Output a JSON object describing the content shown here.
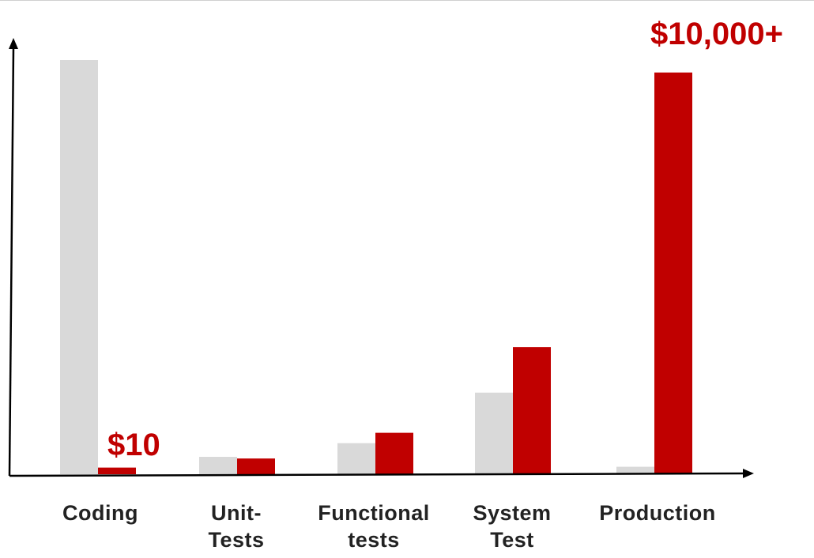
{
  "colors": {
    "effort": "#d9d9d9",
    "cost": "#c00000",
    "axis": "#000000",
    "text": "#222222"
  },
  "chart_data": {
    "type": "bar",
    "categories": [
      "Coding",
      "Unit-\nTests",
      "Functional\ntests",
      "System\nTest",
      "Production"
    ],
    "series": [
      {
        "values": [
          100,
          4.2,
          7.5,
          19.7,
          1.8
        ]
      },
      {
        "values": [
          1.6,
          3.8,
          10,
          30.7,
          97
        ]
      }
    ],
    "ylim": [
      0,
      100
    ],
    "annotations": [
      {
        "text": "$10",
        "category": "Coding"
      },
      {
        "text": "$10,000+",
        "category": "Production"
      }
    ],
    "grid": false,
    "legend": "none",
    "title": "",
    "xlabel": "",
    "ylabel": ""
  }
}
